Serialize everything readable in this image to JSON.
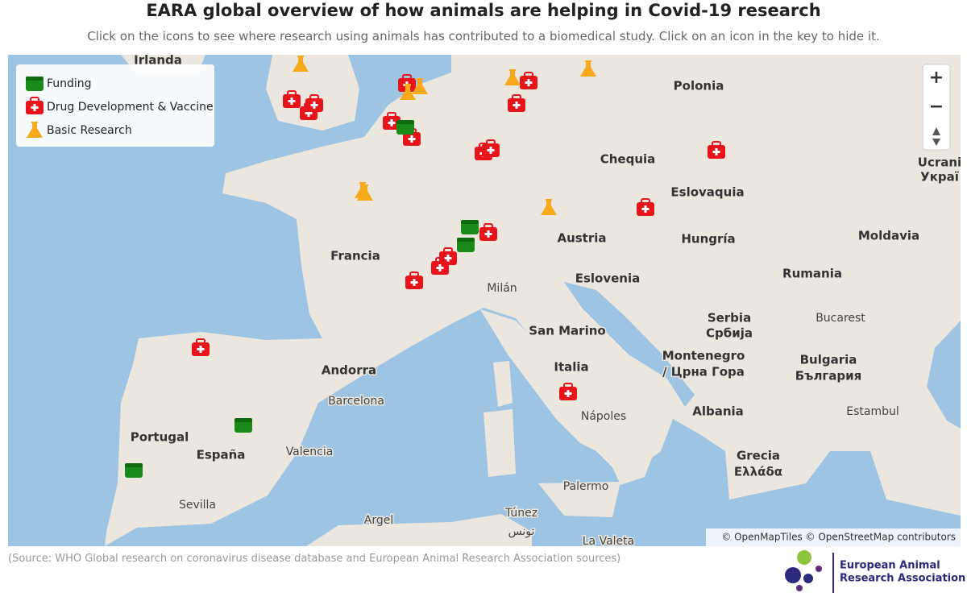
{
  "header": {
    "title": "EARA global overview of how animals are helping in Covid-19 research",
    "subtitle": "Click on the icons to see where research using animals has contributed to a biomedical study. Click on an icon in the key to hide it."
  },
  "legend": {
    "items": [
      "Funding",
      "Drug Development & Vaccine",
      "Basic Research"
    ]
  },
  "map": {
    "controls": [
      "+",
      "−"
    ],
    "place_labels": [
      "Irlanda",
      "Polonia",
      "Chequia",
      "Ucrani",
      "Украї",
      "Eslovaquia",
      "Austria",
      "Hungría",
      "Moldavia",
      "Francia",
      "Eslovenia",
      "Rumania",
      "Milán",
      "Serbia",
      "Сpбија",
      "Bucarest",
      "San Marino",
      "Andorra",
      "Italia",
      "Montenegro",
      "/ Црна Гора",
      "Bulgaria",
      "България",
      "Barcelona",
      "Nápoles",
      "Albania",
      "Estambul",
      "Portugal",
      "España",
      "Valencia",
      "Grecia",
      "Ελλάδα",
      "Sevilla",
      "Palermo",
      "Argel",
      "Túnez",
      "تونس",
      "La Valeta"
    ],
    "attribution": "© OpenMapTiles © OpenStreetMap contributors"
  },
  "footer": {
    "source": "(Source: WHO Global research on coronavirus disease database and European Animal Research Association sources)",
    "logo": [
      "European Animal",
      "Research Association"
    ]
  }
}
